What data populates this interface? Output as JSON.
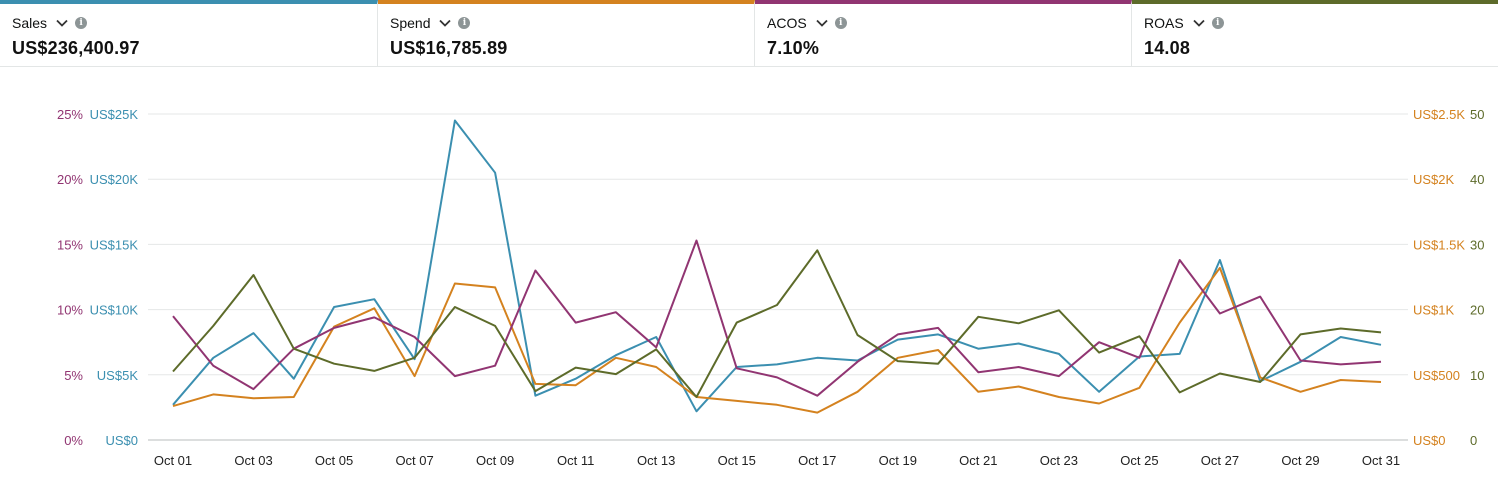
{
  "metrics": [
    {
      "label": "Sales",
      "value": "US$236,400.97",
      "color": "#3b8fb0"
    },
    {
      "label": "Spend",
      "value": "US$16,785.89",
      "color": "#d4821f"
    },
    {
      "label": "ACOS",
      "value": "7.10%",
      "color": "#913572"
    },
    {
      "label": "ROAS",
      "value": "14.08",
      "color": "#5d6b2a"
    }
  ],
  "chart_data": {
    "type": "line",
    "x": [
      "Oct 01",
      "Oct 02",
      "Oct 03",
      "Oct 04",
      "Oct 05",
      "Oct 06",
      "Oct 07",
      "Oct 08",
      "Oct 09",
      "Oct 10",
      "Oct 11",
      "Oct 12",
      "Oct 13",
      "Oct 14",
      "Oct 15",
      "Oct 16",
      "Oct 17",
      "Oct 18",
      "Oct 19",
      "Oct 20",
      "Oct 21",
      "Oct 22",
      "Oct 23",
      "Oct 24",
      "Oct 25",
      "Oct 26",
      "Oct 27",
      "Oct 28",
      "Oct 29",
      "Oct 30",
      "Oct 31"
    ],
    "x_tick_labels": [
      "Oct 01",
      "Oct 03",
      "Oct 05",
      "Oct 07",
      "Oct 09",
      "Oct 11",
      "Oct 13",
      "Oct 15",
      "Oct 17",
      "Oct 19",
      "Oct 21",
      "Oct 23",
      "Oct 25",
      "Oct 27",
      "Oct 29",
      "Oct 31"
    ],
    "axes": {
      "acos": {
        "ticks": [
          "0%",
          "5%",
          "10%",
          "15%",
          "20%",
          "25%"
        ],
        "range": [
          0,
          25
        ],
        "color": "#913572",
        "side": "left-outer"
      },
      "sales": {
        "ticks": [
          "US$0",
          "US$5K",
          "US$10K",
          "US$15K",
          "US$20K",
          "US$25K"
        ],
        "range": [
          0,
          25000
        ],
        "color": "#3b8fb0",
        "side": "left-inner"
      },
      "spend": {
        "ticks": [
          "US$0",
          "US$500",
          "US$1K",
          "US$1.5K",
          "US$2K",
          "US$2.5K"
        ],
        "range": [
          0,
          2500
        ],
        "color": "#d4821f",
        "side": "right-inner"
      },
      "roas": {
        "ticks": [
          "0",
          "10",
          "20",
          "30",
          "40",
          "50"
        ],
        "range": [
          0,
          50
        ],
        "color": "#5d6b2a",
        "side": "right-outer"
      }
    },
    "grid": true,
    "series": [
      {
        "name": "Sales",
        "axis": "sales",
        "color": "#3b8fb0",
        "values": [
          2700,
          6300,
          8200,
          4700,
          10200,
          10800,
          6200,
          24500,
          20500,
          3400,
          4700,
          6500,
          7900,
          2200,
          5600,
          5800,
          6300,
          6100,
          7700,
          8100,
          7000,
          7400,
          6600,
          3700,
          6400,
          6600,
          13800,
          4500,
          6000,
          7900,
          7300
        ]
      },
      {
        "name": "Spend",
        "axis": "spend",
        "color": "#d4821f",
        "values": [
          260,
          350,
          320,
          330,
          870,
          1010,
          490,
          1200,
          1170,
          430,
          420,
          630,
          560,
          330,
          300,
          270,
          210,
          370,
          630,
          690,
          370,
          410,
          330,
          280,
          400,
          900,
          1320,
          480,
          370,
          460,
          445
        ]
      },
      {
        "name": "ACOS",
        "axis": "acos",
        "color": "#913572",
        "values": [
          9.5,
          5.7,
          3.9,
          7.0,
          8.6,
          9.4,
          7.9,
          4.9,
          5.7,
          13.0,
          9.0,
          9.8,
          7.1,
          15.3,
          5.5,
          4.8,
          3.4,
          6.0,
          8.1,
          8.6,
          5.2,
          5.6,
          4.9,
          7.5,
          6.3,
          13.8,
          9.7,
          11.0,
          6.1,
          5.8,
          6.0
        ]
      },
      {
        "name": "ROAS",
        "axis": "roas",
        "color": "#5d6b2a",
        "values": [
          10.5,
          17.5,
          25.3,
          14.0,
          11.7,
          10.6,
          12.6,
          20.4,
          17.5,
          7.5,
          11.1,
          10.1,
          13.9,
          6.6,
          18.0,
          20.7,
          29.1,
          16.1,
          12.1,
          11.7,
          18.9,
          17.9,
          19.9,
          13.4,
          15.9,
          7.3,
          10.2,
          8.9,
          16.2,
          17.1,
          16.5
        ]
      }
    ]
  }
}
